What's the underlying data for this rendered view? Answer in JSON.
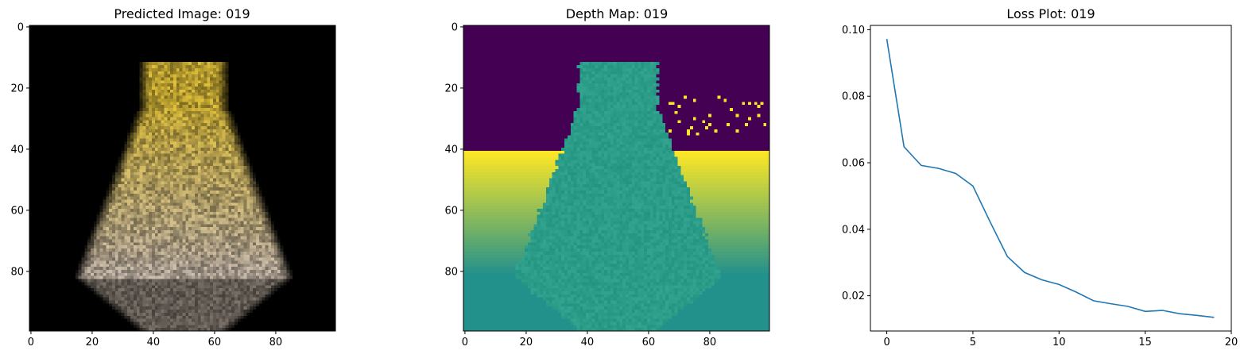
{
  "panels": [
    {
      "title": "Predicted Image: 019",
      "x_ticks": [
        "0",
        "20",
        "40",
        "60",
        "80"
      ],
      "y_ticks": [
        "0",
        "20",
        "40",
        "60",
        "80"
      ]
    },
    {
      "title": "Depth Map: 019",
      "x_ticks": [
        "0",
        "20",
        "40",
        "60",
        "80"
      ],
      "y_ticks": [
        "0",
        "20",
        "40",
        "60",
        "80"
      ]
    },
    {
      "title": "Loss Plot: 019",
      "x_ticks": [
        "0",
        "5",
        "10",
        "15",
        "20"
      ],
      "y_ticks": [
        "0.02",
        "0.04",
        "0.06",
        "0.08",
        "0.10"
      ]
    }
  ],
  "images": {
    "predicted": {
      "resolution": [
        100,
        100
      ],
      "colormap": "rgb",
      "description_colors": {
        "background": "#000000",
        "top": "#e3c23a",
        "bottom": "#cfc0b0"
      }
    },
    "depth": {
      "resolution": [
        100,
        100
      ],
      "colormap": "viridis",
      "colors": {
        "sky": "#440154",
        "floor_near": "#fde725",
        "floor_far": "#22918c",
        "object": "#2a9c88"
      }
    }
  },
  "chart_data": {
    "type": "line",
    "title": "Loss Plot: 019",
    "xlabel": "",
    "ylabel": "",
    "x": [
      0,
      1,
      2,
      3,
      4,
      5,
      6,
      7,
      8,
      9,
      10,
      11,
      12,
      13,
      14,
      15,
      16,
      17,
      18,
      19
    ],
    "series": [
      {
        "values": [
          0.0972,
          0.0648,
          0.0592,
          0.0583,
          0.0568,
          0.053,
          0.0422,
          0.0318,
          0.027,
          0.0248,
          0.0234,
          0.0211,
          0.0185,
          0.0176,
          0.0168,
          0.0153,
          0.0156,
          0.0146,
          0.0141,
          0.0135
        ],
        "color": "#1f77b4"
      }
    ],
    "xlim": [
      -0.95,
      20
    ],
    "ylim": [
      0.0094,
      0.1013
    ],
    "grid": false
  }
}
